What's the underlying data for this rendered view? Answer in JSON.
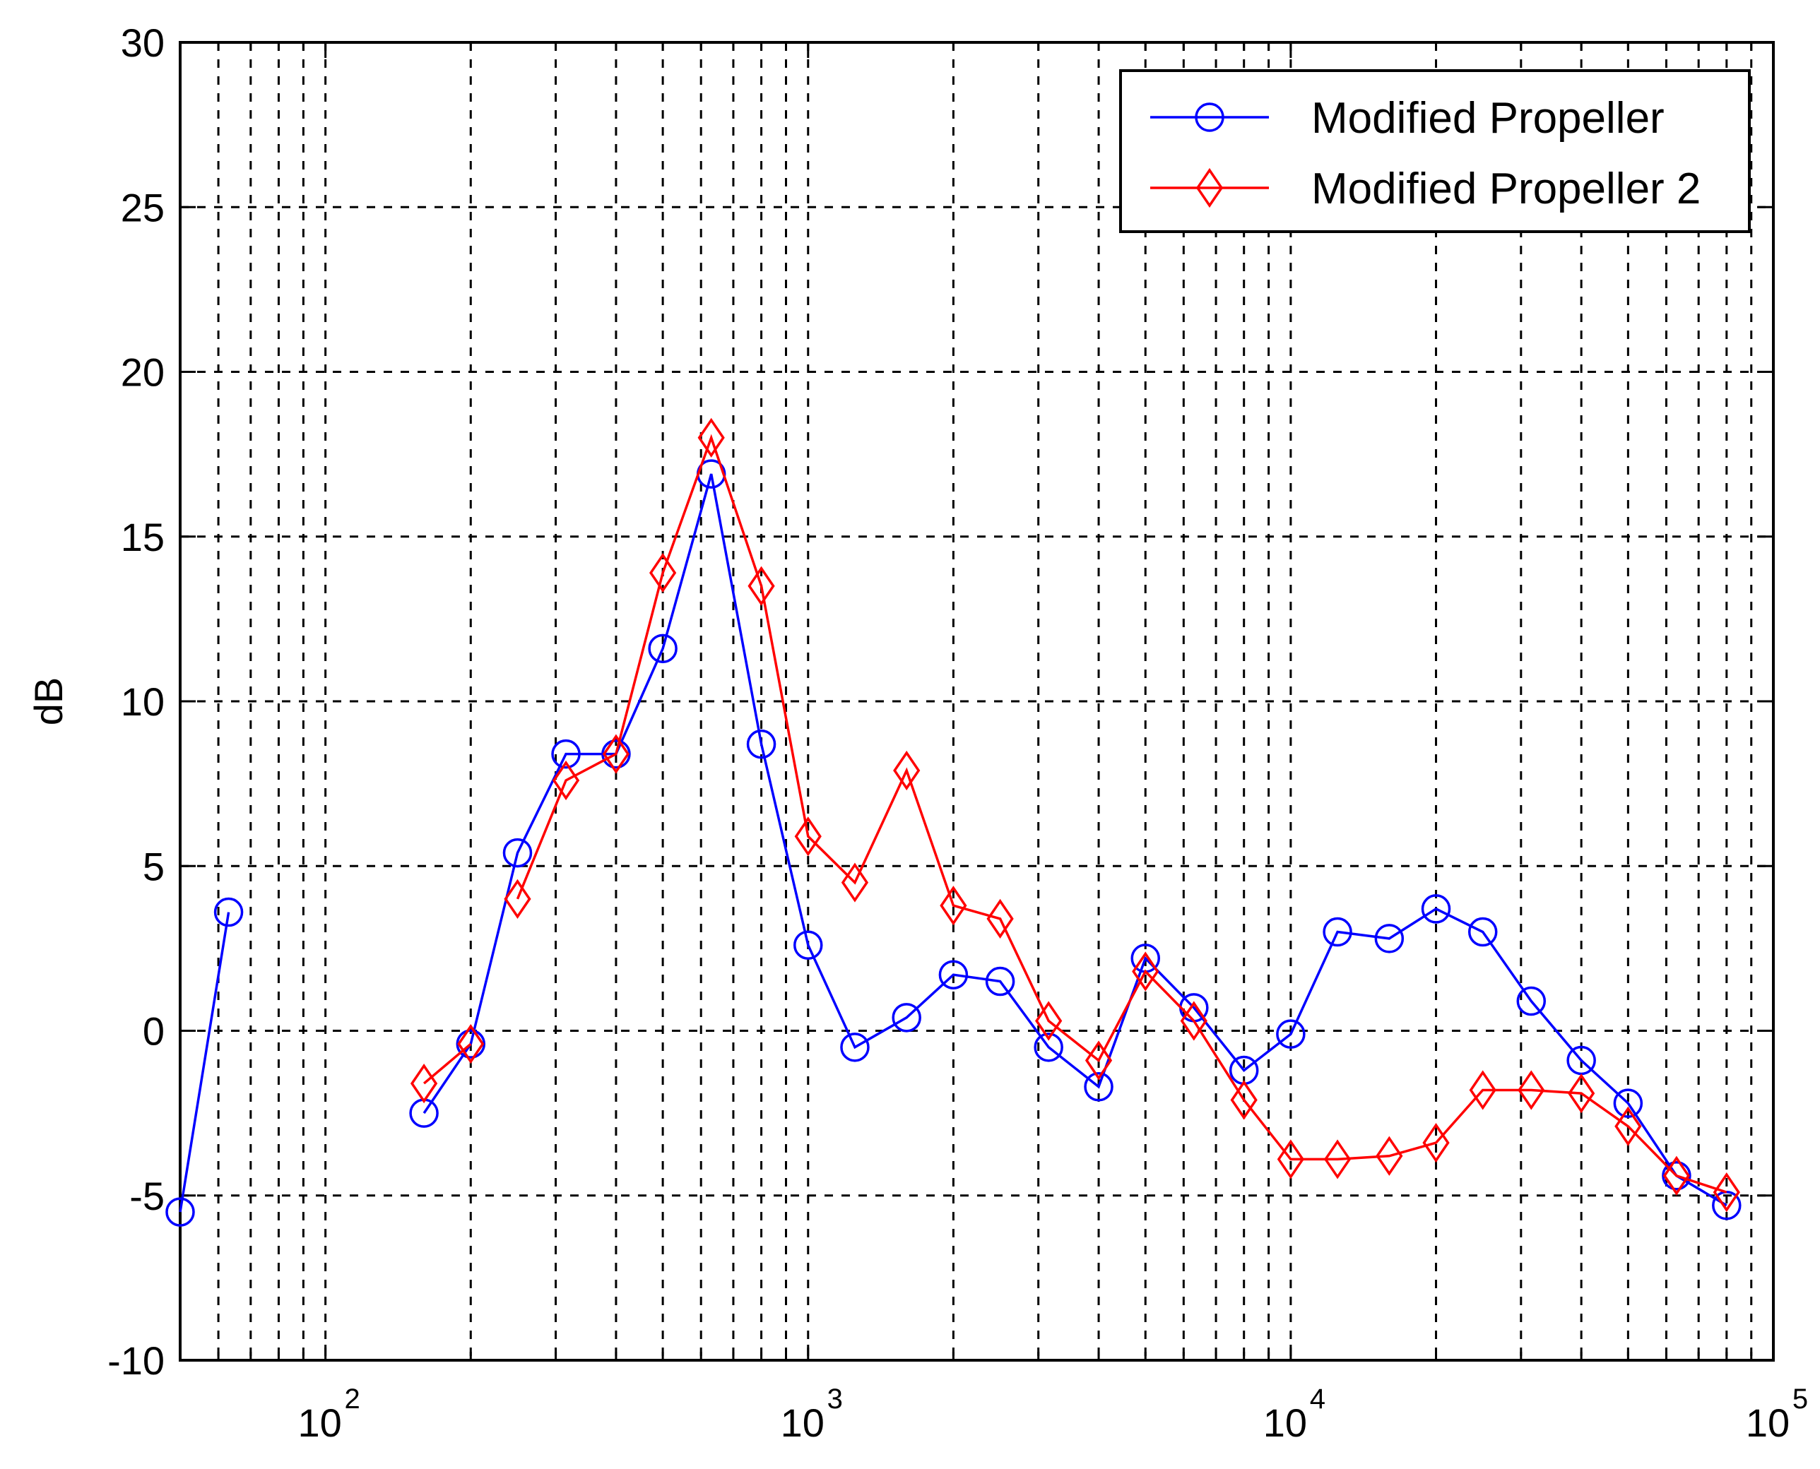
{
  "chart_data": {
    "type": "line",
    "title": "",
    "xlabel": "",
    "ylabel": "dB",
    "xscale": "log",
    "xlim": [
      50,
      100000
    ],
    "ylim": [
      -10,
      30
    ],
    "grid": true,
    "legend_position": "top-right",
    "yticks": [
      -10,
      -5,
      0,
      5,
      10,
      15,
      20,
      25,
      30
    ],
    "ytick_labels": [
      "-10",
      "-5",
      "0",
      "5",
      "10",
      "15",
      "20",
      "25",
      "30"
    ],
    "xticks": [
      {
        "value": 100,
        "base": "10",
        "exp": "2"
      },
      {
        "value": 1000,
        "base": "10",
        "exp": "3"
      },
      {
        "value": 10000,
        "base": "10",
        "exp": "4"
      },
      {
        "value": 100000,
        "base": "10",
        "exp": "5"
      }
    ],
    "series": [
      {
        "name": "Modified Propeller",
        "color": "#0000ff",
        "marker": "circle",
        "segments": [
          [
            [
              50,
              -5.5
            ],
            [
              63,
              3.6
            ]
          ],
          [
            [
              160,
              -2.5
            ],
            [
              200,
              -0.4
            ],
            [
              250,
              5.4
            ],
            [
              315,
              8.4
            ],
            [
              400,
              8.4
            ],
            [
              500,
              11.6
            ],
            [
              630,
              16.9
            ],
            [
              800,
              8.7
            ],
            [
              1000,
              2.6
            ],
            [
              1250,
              -0.5
            ],
            [
              1600,
              0.4
            ],
            [
              2000,
              1.7
            ],
            [
              2500,
              1.5
            ],
            [
              3150,
              -0.5
            ],
            [
              4000,
              -1.7
            ],
            [
              5000,
              2.2
            ],
            [
              6300,
              0.7
            ],
            [
              8000,
              -1.2
            ],
            [
              10000,
              -0.1
            ],
            [
              12500,
              3.0
            ],
            [
              16000,
              2.8
            ],
            [
              20000,
              3.7
            ],
            [
              25000,
              3.0
            ],
            [
              31500,
              0.9
            ],
            [
              40000,
              -0.9
            ],
            [
              50000,
              -2.2
            ],
            [
              63000,
              -4.4
            ],
            [
              80000,
              -5.3
            ]
          ]
        ]
      },
      {
        "name": "Modified Propeller 2",
        "color": "#ff0000",
        "marker": "diamond",
        "segments": [
          [
            [
              160,
              -1.6
            ],
            [
              200,
              -0.4
            ]
          ],
          [
            [
              250,
              4.0
            ],
            [
              315,
              7.6
            ],
            [
              400,
              8.4
            ],
            [
              500,
              13.9
            ],
            [
              630,
              18.0
            ],
            [
              800,
              13.5
            ],
            [
              1000,
              5.9
            ],
            [
              1250,
              4.5
            ],
            [
              1600,
              7.9
            ],
            [
              2000,
              3.8
            ],
            [
              2500,
              3.4
            ],
            [
              3150,
              0.3
            ],
            [
              4000,
              -0.9
            ],
            [
              5000,
              1.8
            ],
            [
              6300,
              0.3
            ],
            [
              8000,
              -2.1
            ],
            [
              10000,
              -3.9
            ],
            [
              12500,
              -3.9
            ],
            [
              16000,
              -3.8
            ],
            [
              20000,
              -3.4
            ],
            [
              25000,
              -1.8
            ],
            [
              31500,
              -1.8
            ],
            [
              40000,
              -1.9
            ],
            [
              50000,
              -2.9
            ],
            [
              63000,
              -4.4
            ],
            [
              80000,
              -4.9
            ]
          ]
        ]
      }
    ]
  }
}
